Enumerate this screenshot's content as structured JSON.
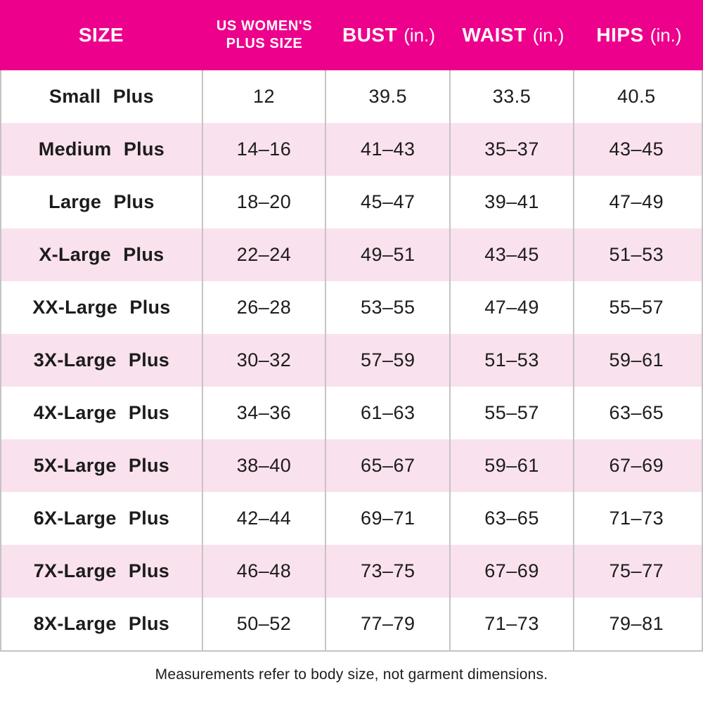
{
  "colors": {
    "header_bg": "#EC008C",
    "header_text": "#FFFFFF",
    "row_bg": "#FFFFFF",
    "row_alt_bg": "#F9E1ED",
    "text": "#1C1C1C",
    "divider": "#C4C4C4"
  },
  "table": {
    "headers": [
      {
        "title": "SIZE",
        "unit": ""
      },
      {
        "line1": "US WOMEN'S",
        "line2": "PLUS SIZE"
      },
      {
        "title": "BUST",
        "unit": "(in.)"
      },
      {
        "title": "WAIST",
        "unit": "(in.)"
      },
      {
        "title": "HIPS",
        "unit": "(in.)"
      }
    ]
  },
  "footer": {
    "note": "Measurements refer to body size, not garment dimensions."
  },
  "chart_data": {
    "type": "table",
    "columns": [
      "SIZE",
      "US WOMEN'S PLUS SIZE",
      "BUST (in.)",
      "WAIST (in.)",
      "HIPS (in.)"
    ],
    "rows": [
      [
        "Small Plus",
        "12",
        "39.5",
        "33.5",
        "40.5"
      ],
      [
        "Medium Plus",
        "14–16",
        "41–43",
        "35–37",
        "43–45"
      ],
      [
        "Large Plus",
        "18–20",
        "45–47",
        "39–41",
        "47–49"
      ],
      [
        "X-Large Plus",
        "22–24",
        "49–51",
        "43–45",
        "51–53"
      ],
      [
        "XX-Large Plus",
        "26–28",
        "53–55",
        "47–49",
        "55–57"
      ],
      [
        "3X-Large Plus",
        "30–32",
        "57–59",
        "51–53",
        "59–61"
      ],
      [
        "4X-Large Plus",
        "34–36",
        "61–63",
        "55–57",
        "63–65"
      ],
      [
        "5X-Large Plus",
        "38–40",
        "65–67",
        "59–61",
        "67–69"
      ],
      [
        "6X-Large Plus",
        "42–44",
        "69–71",
        "63–65",
        "71–73"
      ],
      [
        "7X-Large Plus",
        "46–48",
        "73–75",
        "67–69",
        "75–77"
      ],
      [
        "8X-Large Plus",
        "50–52",
        "77–79",
        "71–73",
        "79–81"
      ]
    ]
  }
}
